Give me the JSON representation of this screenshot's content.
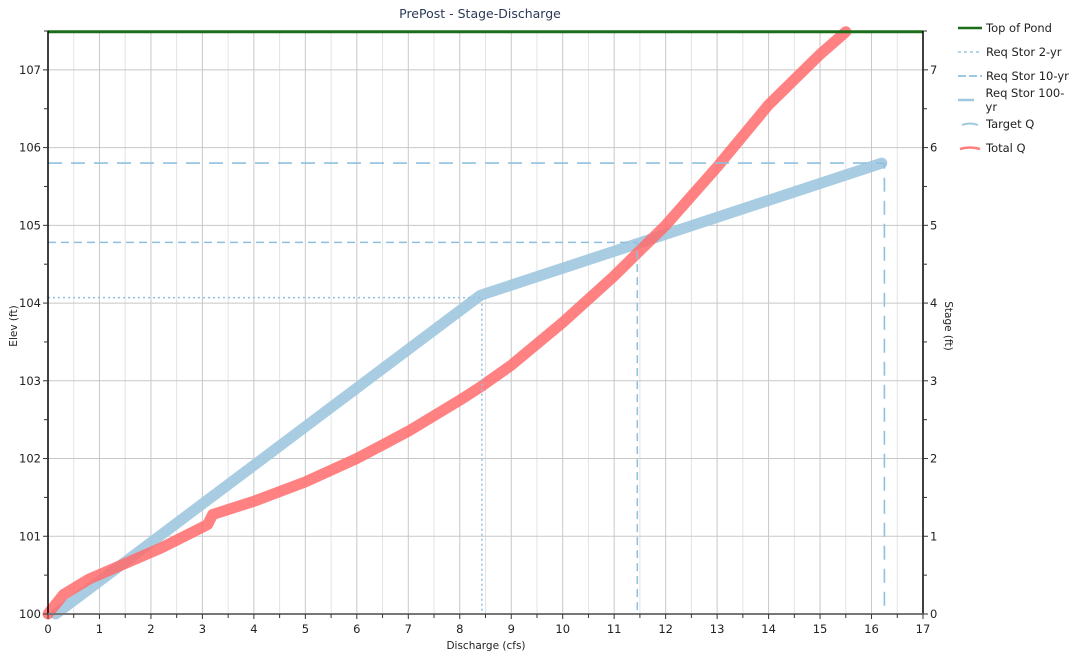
{
  "chart_data": {
    "type": "line",
    "title": "PrePost - Stage-Discharge",
    "xlabel": "Discharge (cfs)",
    "ylabel": "Elev (ft)",
    "y2label": "Stage (ft)",
    "xlim": [
      0,
      17
    ],
    "ylim": [
      100,
      107.5
    ],
    "y2lim": [
      0,
      7.5
    ],
    "x_ticks": [
      "0",
      "1",
      "2",
      "3",
      "4",
      "5",
      "6",
      "7",
      "8",
      "9",
      "10",
      "11",
      "12",
      "13",
      "14",
      "15",
      "16",
      "17"
    ],
    "y_ticks": [
      "100",
      "101",
      "102",
      "103",
      "104",
      "105",
      "106",
      "107"
    ],
    "y2_ticks": [
      "0",
      "1",
      "2",
      "3",
      "4",
      "5",
      "6",
      "7"
    ],
    "grid": true,
    "legend_position": "right",
    "series": [
      {
        "name": "Top of Pond",
        "color": "#1a6e1a",
        "style": "solid",
        "x": [
          0,
          17
        ],
        "y": [
          107.49,
          107.49
        ]
      },
      {
        "name": "Req Stor 2-yr",
        "color": "#8fc0e0",
        "style": "dotted",
        "x": [
          0,
          8.43,
          8.43
        ],
        "y": [
          104.07,
          104.07,
          100
        ]
      },
      {
        "name": "Req Stor 10-yr",
        "color": "#8fc0e0",
        "style": "dashed",
        "x": [
          0,
          11.45,
          11.45
        ],
        "y": [
          104.78,
          104.78,
          100
        ]
      },
      {
        "name": "Req Stor 100-yr",
        "color": "#8fc0e0",
        "style": "long-dash",
        "x": [
          0,
          16.25,
          16.25
        ],
        "y": [
          105.8,
          105.8,
          100
        ]
      },
      {
        "name": "Target Q",
        "color": "#9ec8df",
        "style": "solid-thick",
        "x": [
          0.15,
          8.4,
          16.2
        ],
        "y": [
          100.0,
          104.1,
          105.8
        ]
      },
      {
        "name": "Total Q",
        "color": "#ff6b6b",
        "style": "solid-thick",
        "x": [
          0,
          0.3,
          0.8,
          1.5,
          2.2,
          2.8,
          3.1,
          3.2,
          4,
          5,
          6,
          7,
          8,
          8.4,
          9,
          10,
          11,
          12,
          13,
          14,
          15,
          15.5
        ],
        "y": [
          100.0,
          100.25,
          100.45,
          100.65,
          100.85,
          101.05,
          101.15,
          101.28,
          101.45,
          101.7,
          102.0,
          102.35,
          102.75,
          102.92,
          103.2,
          103.75,
          104.35,
          105.0,
          105.75,
          106.55,
          107.2,
          107.49
        ]
      }
    ]
  },
  "legend": {
    "items": [
      {
        "label": "Top of Pond"
      },
      {
        "label": "Req Stor 2-yr"
      },
      {
        "label": "Req Stor 10-yr"
      },
      {
        "label": "Req Stor 100-yr"
      },
      {
        "label": "Target Q"
      },
      {
        "label": "Total Q"
      }
    ]
  }
}
